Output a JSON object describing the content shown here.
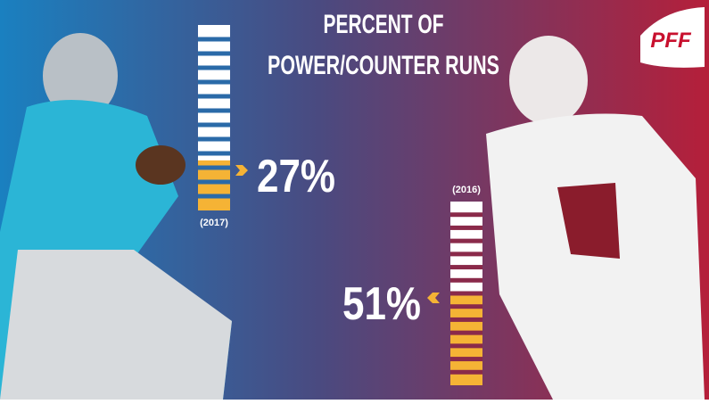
{
  "chart_data": {
    "type": "bar",
    "title": [
      "PERCENT OF",
      "POWER/COUNTER RUNS"
    ],
    "logo": "PFF",
    "categories": [
      "(2017)",
      "(2016)"
    ],
    "values": [
      27,
      51
    ],
    "value_labels": [
      "27%",
      "51%"
    ],
    "color": "#f5b335",
    "ylim": [
      0,
      100
    ]
  }
}
